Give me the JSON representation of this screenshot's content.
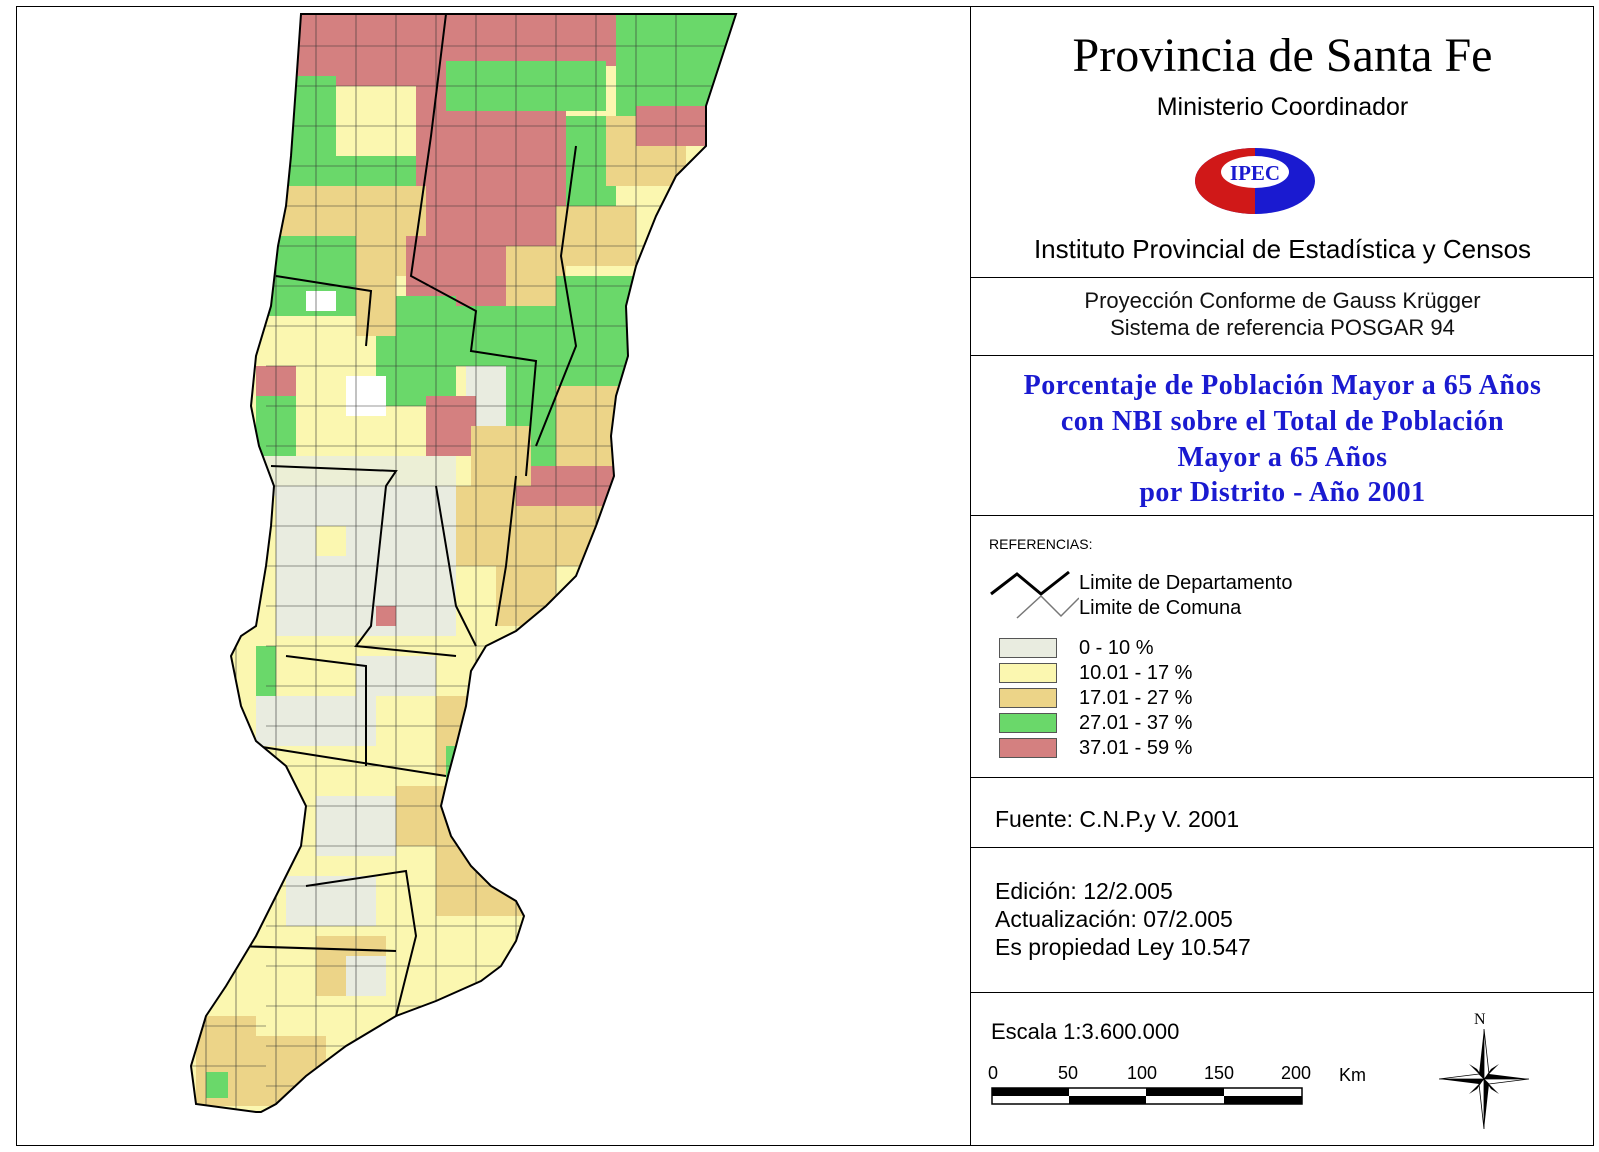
{
  "header": {
    "title": "Provincia de Santa Fe",
    "ministerio": "Ministerio Coordinador",
    "logo_text": "IPEC",
    "instituto": "Instituto Provincial de Estadística y Censos"
  },
  "projection": {
    "line1": "Proyección Conforme de Gauss Krügger",
    "line2": "Sistema de referencia POSGAR 94"
  },
  "map_title": {
    "line1": "Porcentaje de Población Mayor a 65 Años",
    "line2": "con NBI sobre el Total de Población",
    "line3": "Mayor a 65 Años",
    "line4": "por Distrito  -  Año 2001"
  },
  "legend": {
    "heading": "REFERENCIAS:",
    "dept_limit": "Limite de Departamento",
    "comuna_limit": "Limite de Comuna",
    "classes": [
      {
        "label": "0 - 10 %",
        "color": "#e9ece0"
      },
      {
        "label": "10.01 - 17 %",
        "color": "#fbf7b0"
      },
      {
        "label": "17.01 - 27 %",
        "color": "#ecd488"
      },
      {
        "label": "27.01 - 37 %",
        "color": "#6ad86a"
      },
      {
        "label": "37.01 - 59 %",
        "color": "#d48080"
      }
    ]
  },
  "source": "Fuente:  C.N.P.y V. 2001",
  "edition": {
    "edicion": "Edición:  12/2.005",
    "actualizacion": "Actualización:  07/2.005",
    "propiedad": "Es propiedad Ley 10.547"
  },
  "scale": {
    "text": "Escala 1:3.600.000",
    "ticks": [
      "0",
      "50",
      "100",
      "150",
      "200"
    ],
    "unit": "Km",
    "north": "N"
  }
}
